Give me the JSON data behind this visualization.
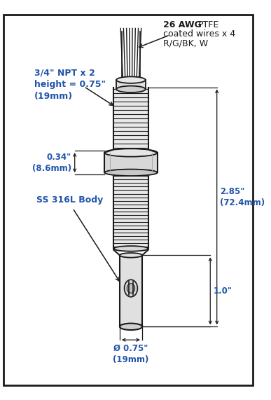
{
  "bg_color": "#ffffff",
  "border_color": "#1a1a1a",
  "line_color": "#1a1a1a",
  "text_color": "#1a1a1a",
  "label_color": "#2255aa",
  "annotations": {
    "wire_label_bold": "26 AWG",
    "wire_label_normal": " PTFE\ncoated wires x 4\nR/G/BK, W",
    "wire_label_full": "26 AWG  PTFE\ncoated wires x 4\nR/G/BK, W",
    "npt_label": "3/4\" NPT x 2\nheight = 0.75\"\n(19mm)",
    "dim_034": "0.34\"\n(8.6mm)",
    "dim_285": "2.85\"\n(72.4mm)",
    "dim_10": "1.0\"",
    "dim_075": "Ø 0.75\"\n(19mm)",
    "body_label": "SS 316L Body"
  },
  "figsize": [
    3.87,
    5.71
  ],
  "dpi": 100
}
